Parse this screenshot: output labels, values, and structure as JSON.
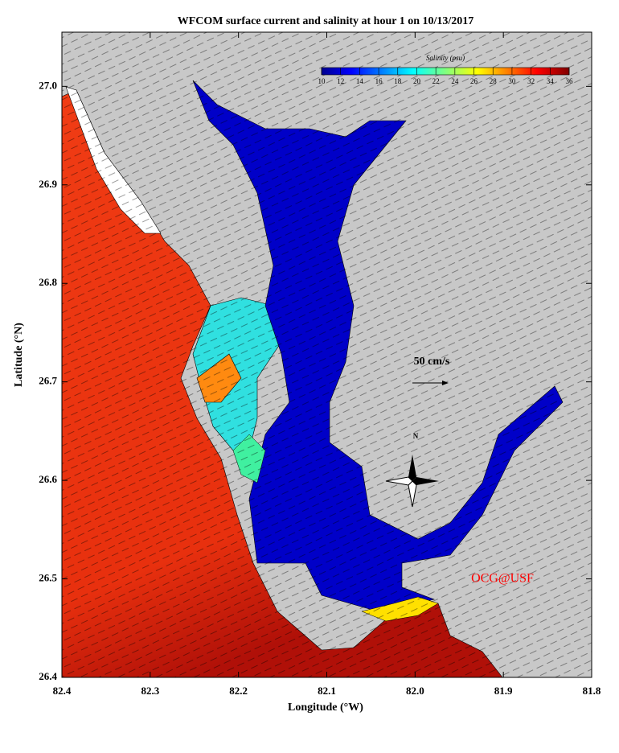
{
  "title": "WFCOM surface current and salinity at hour 1 on 10/13/2017",
  "map": {
    "x_label": "Longitude (°W)",
    "y_label": "Latitude (°N)",
    "xlim": [
      82.4,
      81.8
    ],
    "ylim": [
      26.4,
      27.055
    ],
    "xticks": [
      82.4,
      82.3,
      82.2,
      82.1,
      {
        "value": 82,
        "label": "82.0"
      },
      81.9,
      81.8
    ],
    "yticks": [
      26.4,
      26.5,
      26.6,
      26.7,
      26.8,
      26.9,
      {
        "value": 27,
        "label": "27.0"
      }
    ]
  },
  "colorbar": {
    "title": "Salinity (psu)",
    "range": [
      10,
      36
    ],
    "ticks": [
      10,
      12,
      14,
      16,
      18,
      20,
      22,
      24,
      26,
      28,
      30,
      32,
      34,
      36
    ]
  },
  "annotations": {
    "scale": "50 cm/s",
    "north": "N",
    "credit": "OCG@USF"
  }
}
